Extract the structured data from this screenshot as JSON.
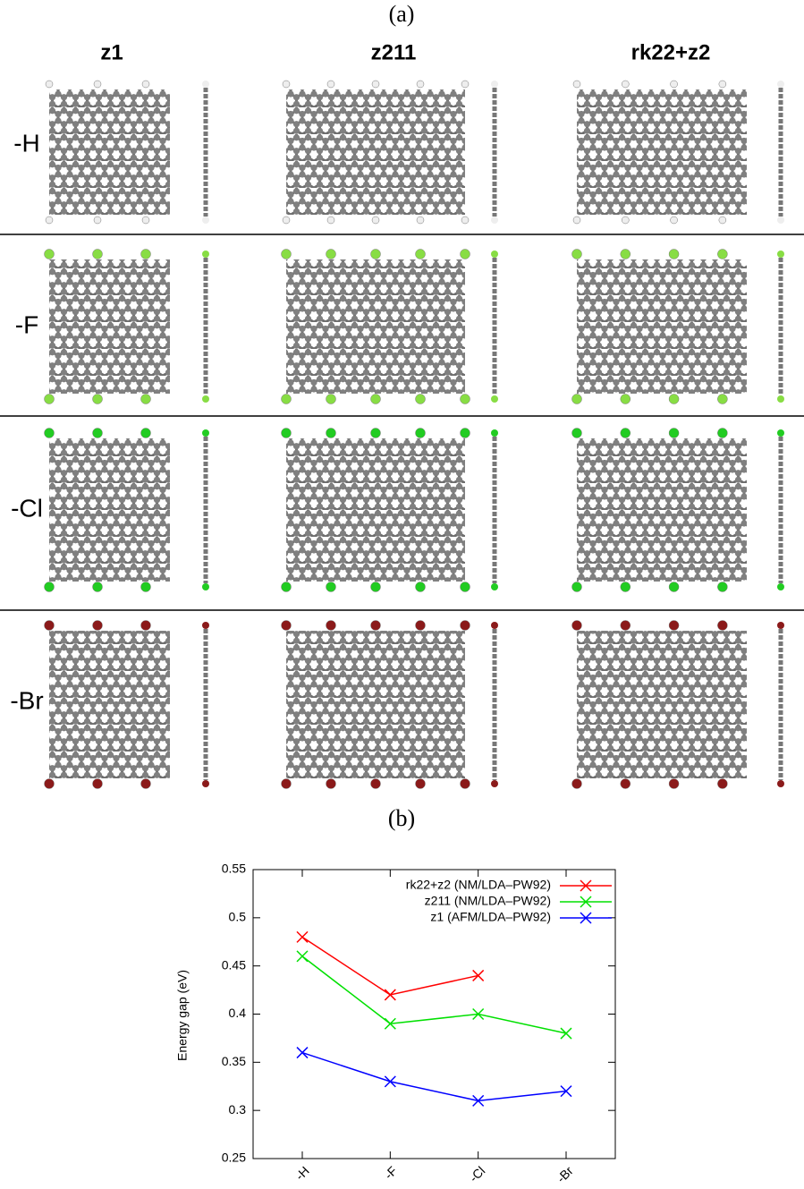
{
  "figure": {
    "panel_a_label": "(a)",
    "columns": [
      "z1",
      "z211",
      "rk22+z2"
    ],
    "rows": [
      "-H",
      "-F",
      "-Cl",
      "-Br"
    ],
    "panel_b_label": "(b)"
  },
  "chart_data": {
    "type": "line",
    "y_label": "Energy gap (eV)",
    "categories": [
      "-H",
      "-F",
      "-Cl",
      "-Br"
    ],
    "series": [
      {
        "name": "rk22+z2 (NM/LDA–PW92)",
        "color": "#ff0000",
        "values": [
          0.48,
          0.42,
          0.44,
          null
        ]
      },
      {
        "name": "z211 (NM/LDA–PW92)",
        "color": "#00e000",
        "values": [
          0.46,
          0.39,
          0.4,
          0.38
        ]
      },
      {
        "name": "z1 (AFM/LDA–PW92)",
        "color": "#0000ff",
        "values": [
          0.36,
          0.33,
          0.31,
          0.32
        ]
      }
    ],
    "ylim": [
      0.25,
      0.55
    ],
    "yticks": [
      0.25,
      0.3,
      0.35,
      0.4,
      0.45,
      0.5,
      0.55
    ],
    "legend": "top-right"
  }
}
